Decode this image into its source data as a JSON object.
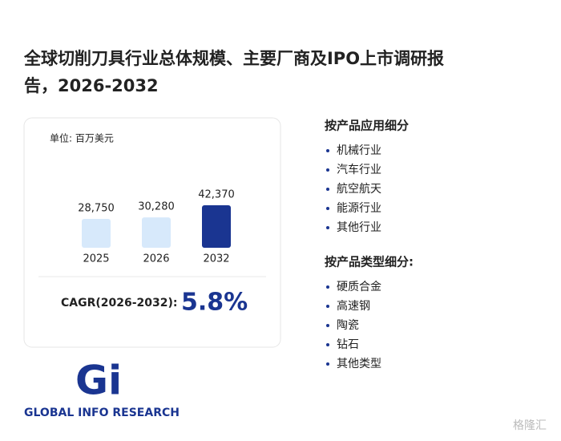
{
  "title": "全球切削刀具行业总体规模、主要厂商及IPO上市调研报告，2026-2032",
  "chart_data": {
    "type": "bar",
    "subtitle": "单位: 百万美元",
    "categories": [
      "2025",
      "2026",
      "2032"
    ],
    "values": [
      28750,
      30280,
      42370
    ],
    "value_labels": [
      "28,750",
      "30,280",
      "42,370"
    ],
    "colors": [
      "#d7e9fb",
      "#d7e9fb",
      "#1a3591"
    ]
  },
  "cagr": {
    "label": "CAGR(2026-2032):",
    "value": "5.8%"
  },
  "sections": [
    {
      "heading": "按产品应用细分",
      "items": [
        "机械行业",
        "汽车行业",
        "航空航天",
        "能源行业",
        "其他行业"
      ]
    },
    {
      "heading": "按产品类型细分:",
      "items": [
        "硬质合金",
        "高速钢",
        "陶瓷",
        "钻石",
        "其他类型"
      ]
    }
  ],
  "logo": {
    "mark": "Gi",
    "name": "GLOBAL INFO RESEARCH"
  },
  "watermark": "格隆汇"
}
